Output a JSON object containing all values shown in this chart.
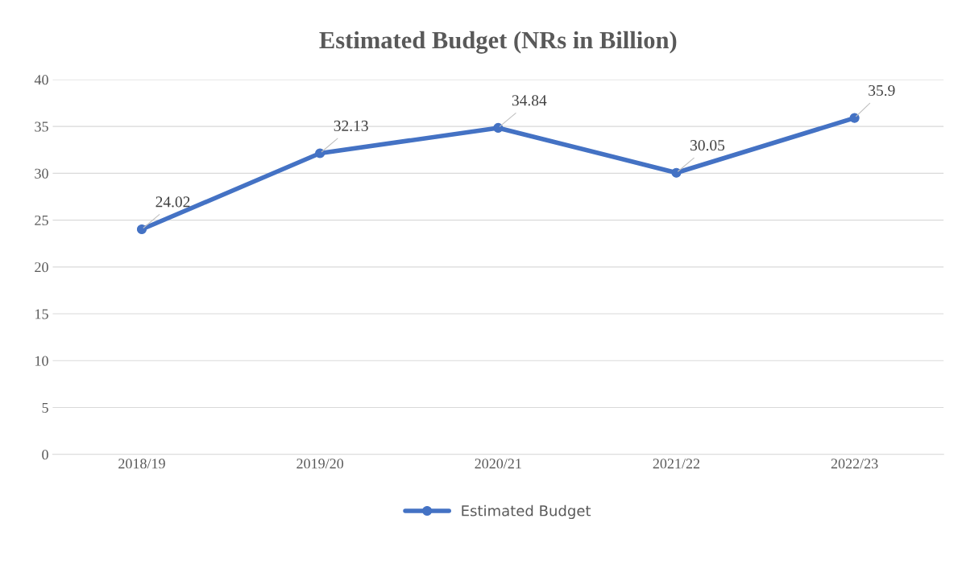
{
  "chart_data": {
    "type": "line",
    "title": "Estimated Budget (NRs in Billion)",
    "categories": [
      "2018/19",
      "2019/20",
      "2020/21",
      "2021/22",
      "2022/23"
    ],
    "series": [
      {
        "name": "Estimated Budget",
        "color": "#4472c4",
        "values": [
          24.02,
          32.13,
          34.84,
          30.05,
          35.9
        ]
      }
    ],
    "ylim": [
      0,
      40
    ],
    "yticks": [
      0,
      5,
      10,
      15,
      20,
      25,
      30,
      35,
      40
    ],
    "grid": "y",
    "legend": "bottom",
    "marker": "circle",
    "line_style": "solid",
    "data_labels": true
  }
}
